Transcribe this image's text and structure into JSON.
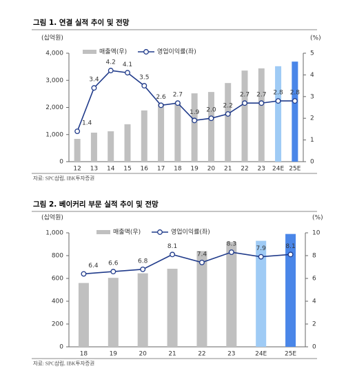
{
  "chart_data": [
    {
      "type": "combo",
      "title": "그림 1. 연결 실적 추이 및 전망",
      "ylabel": "(십억원)",
      "y2label": "(%)",
      "source": "자료: SPC삼립, IBK투자증권",
      "categories": [
        "12",
        "13",
        "14",
        "15",
        "16",
        "17",
        "18",
        "19",
        "20",
        "21",
        "22",
        "23",
        "24E",
        "25E"
      ],
      "series": [
        {
          "name": "매출액(우)",
          "type": "bar",
          "color": "#c0c0c0",
          "colors": [
            "#c0c0c0",
            "#c0c0c0",
            "#c0c0c0",
            "#c0c0c0",
            "#c0c0c0",
            "#c0c0c0",
            "#c0c0c0",
            "#c0c0c0",
            "#c0c0c0",
            "#c0c0c0",
            "#c0c0c0",
            "#c0c0c0",
            "#9fcbf5",
            "#4a86e8"
          ],
          "values": [
            840,
            1070,
            1120,
            1380,
            1890,
            2140,
            2190,
            2520,
            2570,
            2900,
            3360,
            3440,
            3520,
            3690
          ]
        },
        {
          "name": "영업이익률(좌)",
          "type": "line",
          "axis": "y2",
          "color": "#1f3a8a",
          "values": [
            1.4,
            3.4,
            4.2,
            4.1,
            3.5,
            2.6,
            2.7,
            1.9,
            2.0,
            2.2,
            2.7,
            2.7,
            2.8,
            2.8
          ],
          "value_labels": [
            "1.4",
            "3.4",
            "4.2",
            "4.1",
            "3.5",
            "2.6",
            "2.7",
            "1.9",
            "2.0",
            "2.2",
            "2.7",
            "2.7",
            "2.8",
            "2.8"
          ]
        }
      ],
      "ylim": [
        0,
        4000
      ],
      "yticks": [
        0,
        {
          "value": 1000,
          "label": "1,000"
        },
        {
          "value": 2000,
          "label": "2,000"
        },
        {
          "value": 3000,
          "label": "3,000"
        },
        {
          "value": 4000,
          "label": "4,000"
        }
      ],
      "y2lim": [
        0,
        5
      ],
      "y2ticks": [
        0,
        1,
        2,
        3,
        4,
        5
      ]
    },
    {
      "type": "combo",
      "title": "그림 2. 베이커리 부문 실적 추이 및 전망",
      "ylabel": "(십억원)",
      "y2label": "(%)",
      "source": "자료: SPC삼립, IBK투자증권",
      "categories": [
        "18",
        "19",
        "20",
        "21",
        "22",
        "23",
        "24E",
        "25E"
      ],
      "series": [
        {
          "name": "매출액(우)",
          "type": "bar",
          "color": "#c0c0c0",
          "colors": [
            "#c0c0c0",
            "#c0c0c0",
            "#c0c0c0",
            "#c0c0c0",
            "#c0c0c0",
            "#c0c0c0",
            "#9fcbf5",
            "#4a86e8"
          ],
          "values": [
            560,
            605,
            645,
            685,
            840,
            920,
            930,
            990
          ]
        },
        {
          "name": "영업이익률(좌)",
          "type": "line",
          "axis": "y2",
          "color": "#1f3a8a",
          "values": [
            6.4,
            6.6,
            6.8,
            8.1,
            7.4,
            8.3,
            7.9,
            8.1
          ],
          "value_labels": [
            "6.4",
            "6.6",
            "6.8",
            "8.1",
            "7.4",
            "8.3",
            "7.9",
            "8.1"
          ]
        }
      ],
      "ylim": [
        0,
        1000
      ],
      "yticks": [
        0,
        200,
        400,
        600,
        800,
        {
          "value": 1000,
          "label": "1,000"
        }
      ],
      "y2lim": [
        0,
        10
      ],
      "y2ticks": [
        0,
        2,
        4,
        6,
        8,
        10
      ]
    }
  ]
}
